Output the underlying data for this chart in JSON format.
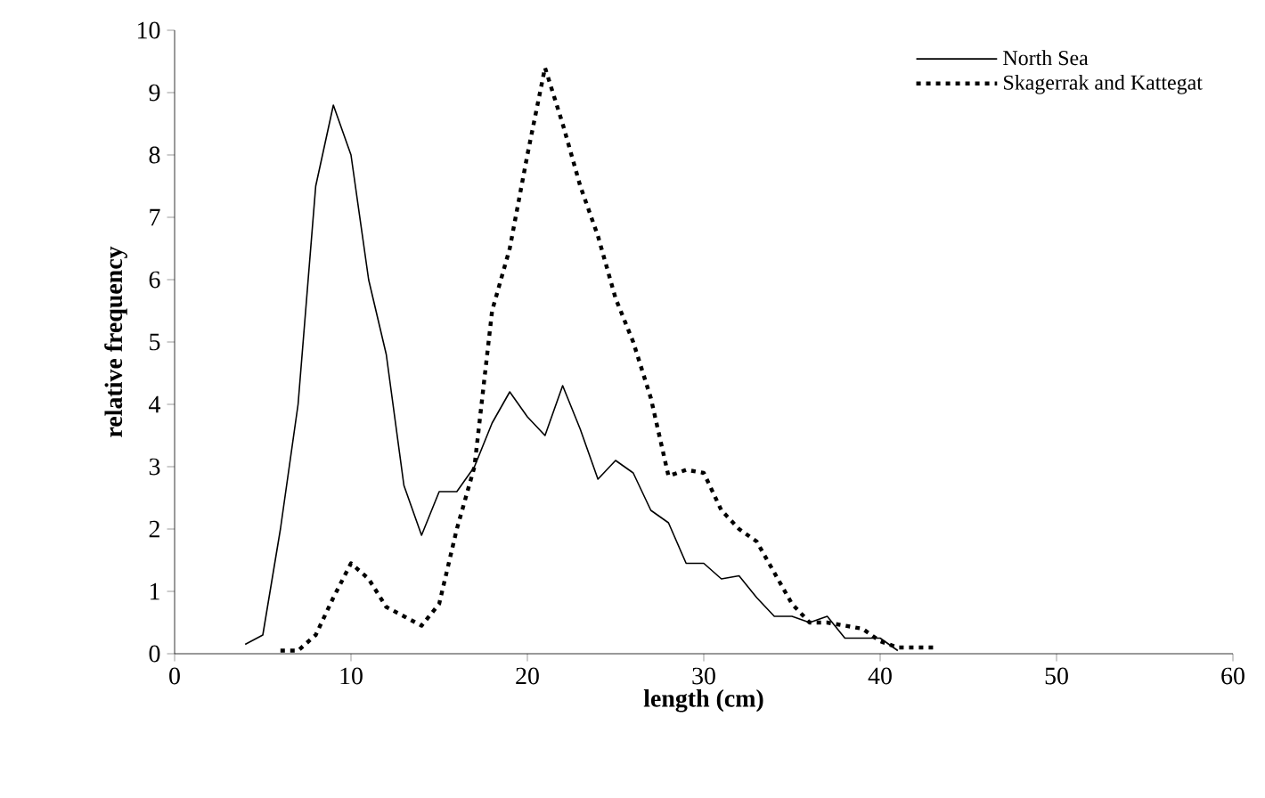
{
  "chart_data": {
    "type": "line",
    "xlabel": "length (cm)",
    "ylabel": "relative frequency",
    "xlim": [
      0,
      60
    ],
    "xticks": [
      0,
      10,
      20,
      30,
      40,
      50,
      60
    ],
    "ylim": [
      0,
      10
    ],
    "yticks": [
      0,
      1,
      2,
      3,
      4,
      5,
      6,
      7,
      8,
      9,
      10
    ],
    "grid": false,
    "legend": "top right",
    "marker": "none",
    "series": [
      {
        "name": "North Sea",
        "color": "#000000",
        "line_style": "solid",
        "x": [
          4,
          5,
          6,
          7,
          8,
          9,
          10,
          11,
          12,
          13,
          14,
          15,
          16,
          17,
          18,
          19,
          20,
          21,
          22,
          23,
          24,
          25,
          26,
          27,
          28,
          29,
          30,
          31,
          32,
          33,
          34,
          35,
          36,
          37,
          38,
          39,
          40,
          41
        ],
        "values": [
          0.15,
          0.3,
          2.0,
          4.0,
          7.5,
          8.8,
          8.0,
          6.0,
          4.8,
          2.7,
          1.9,
          2.6,
          2.6,
          3.0,
          3.7,
          4.2,
          3.8,
          3.5,
          4.3,
          3.6,
          2.8,
          3.1,
          2.9,
          2.3,
          2.1,
          1.45,
          1.45,
          1.2,
          1.25,
          0.9,
          0.6,
          0.6,
          0.5,
          0.6,
          0.25,
          0.25,
          0.25,
          0.05
        ]
      },
      {
        "name": "Skagerrak and Kattegat",
        "color": "#000000",
        "line_style": "dotted",
        "x": [
          6,
          7,
          8,
          9,
          10,
          11,
          12,
          13,
          14,
          15,
          16,
          17,
          18,
          19,
          20,
          21,
          22,
          23,
          24,
          25,
          26,
          27,
          28,
          29,
          30,
          31,
          32,
          33,
          34,
          35,
          36,
          37,
          38,
          39,
          40,
          41,
          42,
          43
        ],
        "values": [
          0.05,
          0.05,
          0.3,
          0.9,
          1.45,
          1.2,
          0.75,
          0.6,
          0.45,
          0.8,
          2.0,
          3.0,
          5.5,
          6.5,
          8.0,
          9.4,
          8.5,
          7.5,
          6.7,
          5.7,
          5.0,
          4.1,
          2.85,
          2.95,
          2.9,
          2.3,
          2.0,
          1.8,
          1.3,
          0.8,
          0.5,
          0.5,
          0.45,
          0.4,
          0.2,
          0.1,
          0.1,
          0.1
        ]
      }
    ]
  }
}
